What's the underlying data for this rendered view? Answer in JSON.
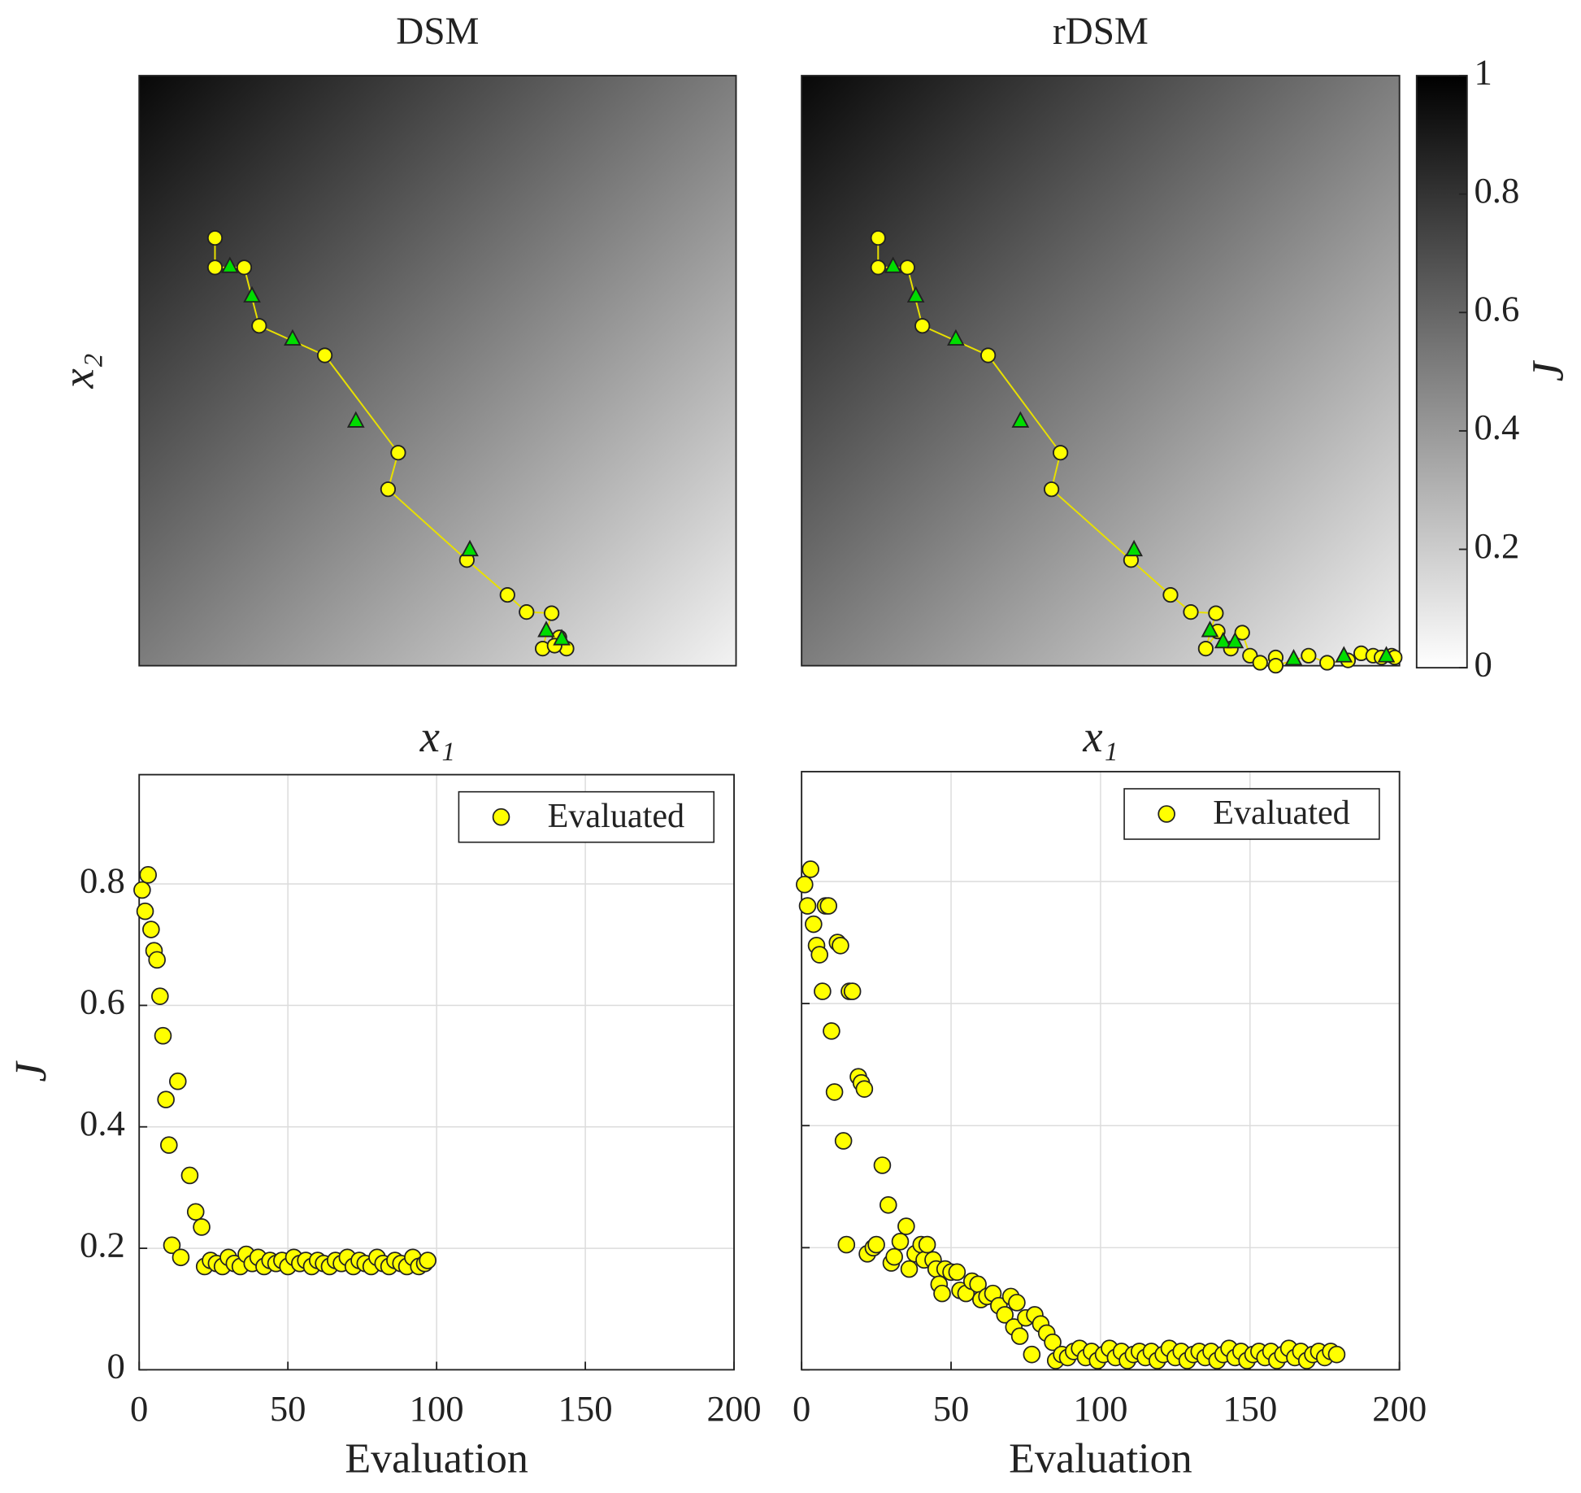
{
  "chart_data": [
    {
      "type": "simplex",
      "title": "DSM",
      "xlabel": "x₁",
      "ylabel": "x₂",
      "xlim": [
        0,
        1
      ],
      "ylim": [
        0,
        1
      ],
      "series": [
        {
          "marker": "circle",
          "color": "#ffff00",
          "x": [
            0.127,
            0.127,
            0.176,
            0.201,
            0.311,
            0.434,
            0.417,
            0.549,
            0.617,
            0.649,
            0.691,
            0.676,
            0.704,
            0.716,
            0.696
          ],
          "values": [
            0.725,
            0.675,
            0.675,
            0.576,
            0.526,
            0.361,
            0.299,
            0.179,
            0.12,
            0.091,
            0.089,
            0.029,
            0.048,
            0.029,
            0.034
          ]
        },
        {
          "marker": "triangle",
          "color": "#00dd00",
          "x": [
            0.152,
            0.189,
            0.257,
            0.363,
            0.554,
            0.682,
            0.708
          ],
          "values": [
            0.677,
            0.627,
            0.554,
            0.415,
            0.197,
            0.06,
            0.046
          ]
        }
      ]
    },
    {
      "type": "simplex",
      "title": "rDSM",
      "xlabel": "x₁",
      "xlim": [
        0,
        1
      ],
      "ylim": [
        0,
        1
      ],
      "series": [
        {
          "marker": "circle",
          "color": "#ffff00",
          "x": [
            0.128,
            0.128,
            0.177,
            0.202,
            0.312,
            0.433,
            0.418,
            0.551,
            0.617,
            0.651,
            0.693,
            0.676,
            0.696,
            0.718,
            0.737,
            0.75,
            0.767,
            0.793,
            0.793,
            0.848,
            0.879,
            0.914,
            0.936,
            0.956,
            0.97,
            0.987,
            0.992
          ],
          "values": [
            0.725,
            0.675,
            0.675,
            0.576,
            0.526,
            0.361,
            0.299,
            0.179,
            0.12,
            0.091,
            0.089,
            0.029,
            0.058,
            0.029,
            0.056,
            0.017,
            0.005,
            0.014,
            0.0,
            0.017,
            0.005,
            0.009,
            0.021,
            0.017,
            0.014,
            0.017,
            0.014
          ]
        },
        {
          "marker": "triangle",
          "color": "#00dd00",
          "x": [
            0.153,
            0.191,
            0.258,
            0.366,
            0.556,
            0.683,
            0.705,
            0.725,
            0.823,
            0.907,
            0.978
          ],
          "values": [
            0.677,
            0.627,
            0.554,
            0.415,
            0.197,
            0.06,
            0.041,
            0.041,
            0.012,
            0.017,
            0.017
          ]
        }
      ]
    },
    {
      "type": "colorbar",
      "label": "J",
      "clim": [
        0,
        1
      ],
      "ticks": [
        0,
        0.2,
        0.4,
        0.6,
        0.8,
        1
      ]
    },
    {
      "type": "scatter",
      "xlabel": "Evaluation",
      "ylabel": "J",
      "xlim": [
        0,
        200
      ],
      "ylim": [
        0,
        0.98
      ],
      "xticks": [
        0,
        50,
        100,
        150,
        200
      ],
      "yticks": [
        0,
        0.2,
        0.4,
        0.6,
        0.8
      ],
      "grid": true,
      "legend": "upper right",
      "series": [
        {
          "name": "Evaluated",
          "color": "#ffff00",
          "x": [
            1,
            2,
            3,
            4,
            5,
            6,
            7,
            8,
            9,
            10,
            11,
            13,
            14,
            17,
            19,
            21,
            22,
            24,
            26,
            28,
            30,
            32,
            34,
            36,
            38,
            40,
            42,
            44,
            46,
            48,
            50,
            52,
            54,
            56,
            58,
            60,
            62,
            64,
            66,
            68,
            70,
            72,
            74,
            76,
            78,
            80,
            82,
            84,
            86,
            88,
            90,
            92,
            94,
            96,
            97
          ],
          "values": [
            0.79,
            0.755,
            0.815,
            0.725,
            0.69,
            0.675,
            0.615,
            0.55,
            0.445,
            0.37,
            0.205,
            0.475,
            0.185,
            0.32,
            0.26,
            0.235,
            0.17,
            0.18,
            0.175,
            0.17,
            0.185,
            0.175,
            0.17,
            0.19,
            0.175,
            0.185,
            0.17,
            0.18,
            0.175,
            0.18,
            0.17,
            0.185,
            0.175,
            0.18,
            0.17,
            0.18,
            0.175,
            0.17,
            0.18,
            0.175,
            0.185,
            0.17,
            0.18,
            0.175,
            0.17,
            0.185,
            0.175,
            0.17,
            0.18,
            0.175,
            0.17,
            0.185,
            0.17,
            0.175,
            0.18
          ]
        }
      ]
    },
    {
      "type": "scatter",
      "xlabel": "Evaluation",
      "xlim": [
        0,
        200
      ],
      "ylim": [
        0,
        0.98
      ],
      "xticks": [
        0,
        50,
        100,
        150,
        200
      ],
      "yticks": [
        0,
        0.2,
        0.4,
        0.6,
        0.8
      ],
      "show_ytick_labels": false,
      "grid": true,
      "legend": "upper right",
      "series": [
        {
          "name": "Evaluated",
          "color": "#ffff00",
          "x": [
            1,
            2,
            3,
            4,
            5,
            6,
            7,
            8,
            9,
            10,
            11,
            12,
            13,
            14,
            15,
            16,
            17,
            19,
            20,
            21,
            22,
            24,
            25,
            27,
            29,
            30,
            31,
            33,
            35,
            36,
            38,
            40,
            41,
            42,
            44,
            45,
            46,
            47,
            48,
            50,
            52,
            53,
            55,
            57,
            59,
            60,
            62,
            64,
            66,
            68,
            70,
            71,
            72,
            73,
            75,
            77,
            78,
            80,
            82,
            84,
            85,
            87,
            89,
            91,
            93,
            95,
            97,
            99,
            101,
            103,
            105,
            107,
            109,
            111,
            113,
            115,
            117,
            119,
            121,
            123,
            125,
            127,
            129,
            131,
            133,
            135,
            137,
            139,
            141,
            143,
            145,
            147,
            149,
            151,
            153,
            155,
            157,
            159,
            161,
            163,
            165,
            167,
            169,
            171,
            173,
            175,
            177,
            179
          ],
          "values": [
            0.795,
            0.76,
            0.82,
            0.73,
            0.695,
            0.68,
            0.62,
            0.76,
            0.76,
            0.555,
            0.455,
            0.7,
            0.695,
            0.375,
            0.205,
            0.62,
            0.62,
            0.48,
            0.47,
            0.46,
            0.19,
            0.2,
            0.205,
            0.335,
            0.27,
            0.175,
            0.185,
            0.21,
            0.235,
            0.165,
            0.19,
            0.205,
            0.18,
            0.205,
            0.18,
            0.165,
            0.14,
            0.125,
            0.165,
            0.16,
            0.16,
            0.13,
            0.125,
            0.145,
            0.14,
            0.115,
            0.12,
            0.125,
            0.105,
            0.09,
            0.12,
            0.07,
            0.11,
            0.055,
            0.085,
            0.025,
            0.09,
            0.075,
            0.06,
            0.045,
            0.015,
            0.025,
            0.02,
            0.03,
            0.035,
            0.02,
            0.03,
            0.015,
            0.025,
            0.035,
            0.02,
            0.03,
            0.015,
            0.025,
            0.03,
            0.02,
            0.03,
            0.015,
            0.025,
            0.035,
            0.02,
            0.03,
            0.015,
            0.025,
            0.03,
            0.02,
            0.03,
            0.015,
            0.025,
            0.035,
            0.02,
            0.03,
            0.015,
            0.025,
            0.03,
            0.02,
            0.03,
            0.015,
            0.025,
            0.035,
            0.02,
            0.03,
            0.015,
            0.025,
            0.03,
            0.02,
            0.03,
            0.025
          ]
        }
      ]
    }
  ]
}
